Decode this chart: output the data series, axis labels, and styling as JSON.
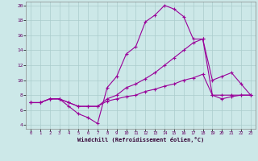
{
  "xlabel": "Windchill (Refroidissement éolien,°C)",
  "background_color": "#cce8e8",
  "line_color": "#990099",
  "grid_color": "#aacccc",
  "xlim_min": -0.5,
  "xlim_max": 23.5,
  "ylim_min": 3.5,
  "ylim_max": 20.5,
  "xticks": [
    0,
    1,
    2,
    3,
    4,
    5,
    6,
    7,
    8,
    9,
    10,
    11,
    12,
    13,
    14,
    15,
    16,
    17,
    18,
    19,
    20,
    21,
    22,
    23
  ],
  "yticks": [
    4,
    6,
    8,
    10,
    12,
    14,
    16,
    18,
    20
  ],
  "series": [
    {
      "x": [
        0,
        1,
        2,
        3,
        4,
        5,
        6,
        7,
        8,
        9,
        10,
        11,
        12,
        13,
        14,
        15,
        16,
        17,
        18,
        19,
        20,
        21,
        22,
        23
      ],
      "y": [
        7,
        7,
        7.5,
        7.5,
        6.5,
        5.5,
        5.0,
        4.2,
        9.0,
        10.5,
        13.5,
        14.5,
        17.8,
        18.7,
        20.0,
        19.5,
        18.5,
        15.5,
        15.5,
        8.0,
        7.5,
        7.8,
        8.0,
        8.0
      ]
    },
    {
      "x": [
        0,
        1,
        2,
        3,
        4,
        5,
        6,
        7,
        8,
        9,
        10,
        11,
        12,
        13,
        14,
        15,
        16,
        17,
        18,
        19,
        20,
        21,
        22,
        23
      ],
      "y": [
        7,
        7,
        7.5,
        7.5,
        7.0,
        6.5,
        6.5,
        6.5,
        7.5,
        8.0,
        9.0,
        9.5,
        10.2,
        11.0,
        12.0,
        13.0,
        14.0,
        15.0,
        15.5,
        10.0,
        10.5,
        11.0,
        9.5,
        8.0
      ]
    },
    {
      "x": [
        0,
        1,
        2,
        3,
        4,
        5,
        6,
        7,
        8,
        9,
        10,
        11,
        12,
        13,
        14,
        15,
        16,
        17,
        18,
        19,
        20,
        21,
        22,
        23
      ],
      "y": [
        7,
        7,
        7.5,
        7.5,
        7.0,
        6.5,
        6.5,
        6.5,
        7.2,
        7.5,
        7.8,
        8.0,
        8.5,
        8.8,
        9.2,
        9.5,
        10.0,
        10.3,
        10.8,
        8.0,
        8.0,
        8.0,
        8.0,
        8.0
      ]
    }
  ]
}
